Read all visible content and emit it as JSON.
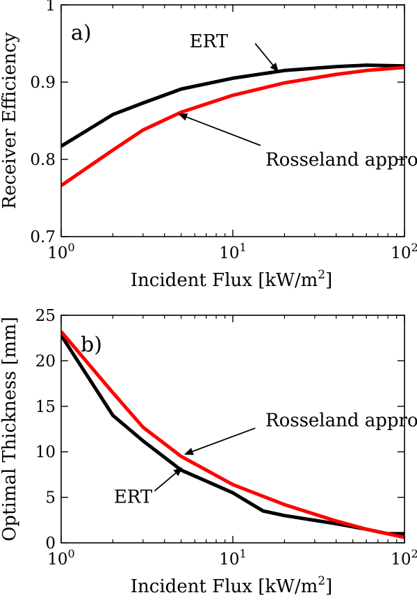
{
  "chart_data": [
    {
      "type": "line",
      "panel_label": "a)",
      "xscale": "log",
      "xlim": [
        1,
        100
      ],
      "ylim": [
        0.7,
        1
      ],
      "xlabel": "Incident Flux [kW/m",
      "xlabel_sup": "2",
      "xlabel_end": "]",
      "ylabel": "Receiver Efficiency",
      "x_ticks": [
        {
          "value": 1,
          "base": "10",
          "exp": "0"
        },
        {
          "value": 10,
          "base": "10",
          "exp": "1"
        },
        {
          "value": 100,
          "base": "10",
          "exp": "2"
        }
      ],
      "y_ticks": [
        {
          "value": 0.7,
          "label": "0.7"
        },
        {
          "value": 0.8,
          "label": "0.8"
        },
        {
          "value": 0.9,
          "label": "0.9"
        },
        {
          "value": 1,
          "label": "1"
        }
      ],
      "series": [
        {
          "name": "ERT",
          "color": "#000000",
          "x": [
            1,
            2,
            3,
            5,
            10,
            20,
            40,
            60,
            100
          ],
          "y": [
            0.817,
            0.858,
            0.873,
            0.891,
            0.905,
            0.915,
            0.92,
            0.922,
            0.921
          ]
        },
        {
          "name": "Rosseland approx.",
          "color": "#ff0000",
          "x": [
            1,
            2,
            3,
            5,
            10,
            20,
            40,
            60,
            100
          ],
          "y": [
            0.766,
            0.812,
            0.838,
            0.861,
            0.883,
            0.899,
            0.91,
            0.915,
            0.919
          ]
        }
      ],
      "annotations": [
        {
          "text": "ERT",
          "series": "ERT",
          "label_at": [
            5.6,
            0.953
          ],
          "arrow_from": [
            13.5,
            0.95
          ],
          "arrow_to": [
            18.5,
            0.913
          ],
          "anchor": "start"
        },
        {
          "text": "Rosseland approx.",
          "series": "Rosseland approx.",
          "label_at": [
            15.5,
            0.8
          ],
          "arrow_from": [
            14.5,
            0.818
          ],
          "arrow_to": [
            4.8,
            0.859
          ],
          "anchor": "start"
        }
      ]
    },
    {
      "type": "line",
      "panel_label": "b)",
      "xscale": "log",
      "xlim": [
        1,
        100
      ],
      "ylim": [
        0,
        25
      ],
      "xlabel": "Incident Flux [kW/m",
      "xlabel_sup": "2",
      "xlabel_end": "]",
      "ylabel": "Optimal Thickness [mm]",
      "x_ticks": [
        {
          "value": 1,
          "base": "10",
          "exp": "0"
        },
        {
          "value": 10,
          "base": "10",
          "exp": "1"
        },
        {
          "value": 100,
          "base": "10",
          "exp": "2"
        }
      ],
      "y_ticks": [
        {
          "value": 0,
          "label": "0"
        },
        {
          "value": 5,
          "label": "5"
        },
        {
          "value": 10,
          "label": "10"
        },
        {
          "value": 15,
          "label": "15"
        },
        {
          "value": 20,
          "label": "20"
        },
        {
          "value": 25,
          "label": "25"
        }
      ],
      "series": [
        {
          "name": "ERT",
          "color": "#000000",
          "x": [
            1,
            2,
            3,
            5,
            10,
            15,
            20,
            40,
            60,
            80,
            100
          ],
          "y": [
            22.8,
            14,
            11.2,
            8,
            5.5,
            3.5,
            3,
            2.1,
            1.5,
            1,
            1
          ]
        },
        {
          "name": "Rosseland approx.",
          "color": "#ff0000",
          "x": [
            1,
            2,
            3,
            5,
            10,
            20,
            40,
            60,
            100
          ],
          "y": [
            23.2,
            16.5,
            12.7,
            9.5,
            6.4,
            4.2,
            2.4,
            1.5,
            0.6
          ]
        }
      ],
      "annotations": [
        {
          "text": "Rosseland approx.",
          "series": "Rosseland approx.",
          "label_at": [
            15.5,
            13.5
          ],
          "arrow_from": [
            13.5,
            12.6
          ],
          "arrow_to": [
            5.2,
            9.7
          ],
          "anchor": "start"
        },
        {
          "text": "ERT",
          "series": "ERT",
          "label_at": [
            3.4,
            5.1
          ],
          "arrow_from": [
            3.5,
            5.7
          ],
          "arrow_to": [
            5.1,
            8.3
          ],
          "anchor": "end"
        }
      ]
    }
  ]
}
